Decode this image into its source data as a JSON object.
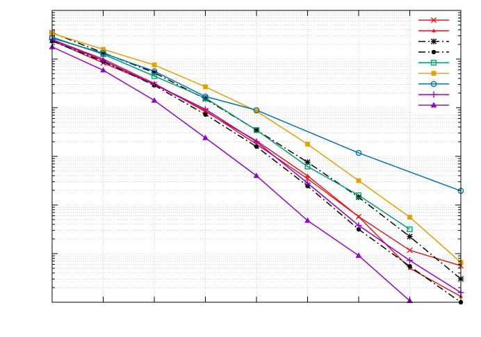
{
  "chart_data": {
    "type": "line",
    "title": "",
    "xlabel": "",
    "ylabel": "",
    "y_scale": "log",
    "grid": true,
    "legend_position": "top-right",
    "x": [
      0,
      1,
      2,
      3,
      4,
      5,
      6,
      7,
      8
    ],
    "xlim": [
      0,
      8
    ],
    "ylim_exp": [
      -6,
      0
    ],
    "series": [
      {
        "color": "#e41a1c",
        "marker": "x",
        "dash": "solid",
        "log10_values": [
          -0.62,
          -1.08,
          -1.52,
          -2.06,
          -2.75,
          -3.46,
          -4.24,
          -4.93,
          -5.25
        ]
      },
      {
        "color": "#e41a1c",
        "marker": "tri-small",
        "dash": "solid",
        "log10_values": [
          -0.6,
          -1.0,
          -1.5,
          -2.08,
          -2.68,
          -3.4,
          -4.24,
          -5.3,
          -5.88
        ]
      },
      {
        "color": "#000000",
        "marker": "asterisk",
        "dash": "dashdot",
        "log10_values": [
          -0.46,
          -0.87,
          -1.28,
          -1.82,
          -2.46,
          -3.12,
          -3.84,
          -4.65,
          -5.52
        ]
      },
      {
        "color": "#000000",
        "marker": "dot",
        "dash": "dashdot",
        "log10_values": [
          -0.63,
          -1.05,
          -1.54,
          -2.14,
          -2.8,
          -3.61,
          -4.5,
          -5.26,
          -6.0
        ]
      },
      {
        "color": "#009e73",
        "marker": "square-open",
        "dash": "solid",
        "log10_values": [
          -0.55,
          -0.9,
          -1.35,
          -1.8,
          -2.46,
          -3.21,
          -3.8,
          -4.5
        ]
      },
      {
        "color": "#e69f00",
        "marker": "square",
        "dash": "solid",
        "log10_values": [
          -0.47,
          -0.8,
          -1.12,
          -1.57,
          -2.07,
          -2.75,
          -3.5,
          -4.25,
          -5.18
        ]
      },
      {
        "color": "#0072b2",
        "marker": "circle-open",
        "dash": "solid",
        "log10_values": [
          -0.57,
          -0.88,
          -1.25,
          -1.77,
          -2.05,
          null,
          -2.93,
          null,
          -3.71
        ]
      },
      {
        "color": "#9400d3",
        "marker": "plus",
        "dash": "solid",
        "log10_values": [
          -0.6,
          -1.03,
          -1.52,
          -2.03,
          -2.7,
          -3.55,
          -4.42,
          -5.14,
          -5.8
        ]
      },
      {
        "color": "#9400d3",
        "marker": "triangle",
        "dash": "solid",
        "log10_values": [
          -0.75,
          -1.23,
          -1.85,
          -2.62,
          -3.4,
          -4.32,
          -5.04,
          -5.97
        ]
      }
    ]
  }
}
